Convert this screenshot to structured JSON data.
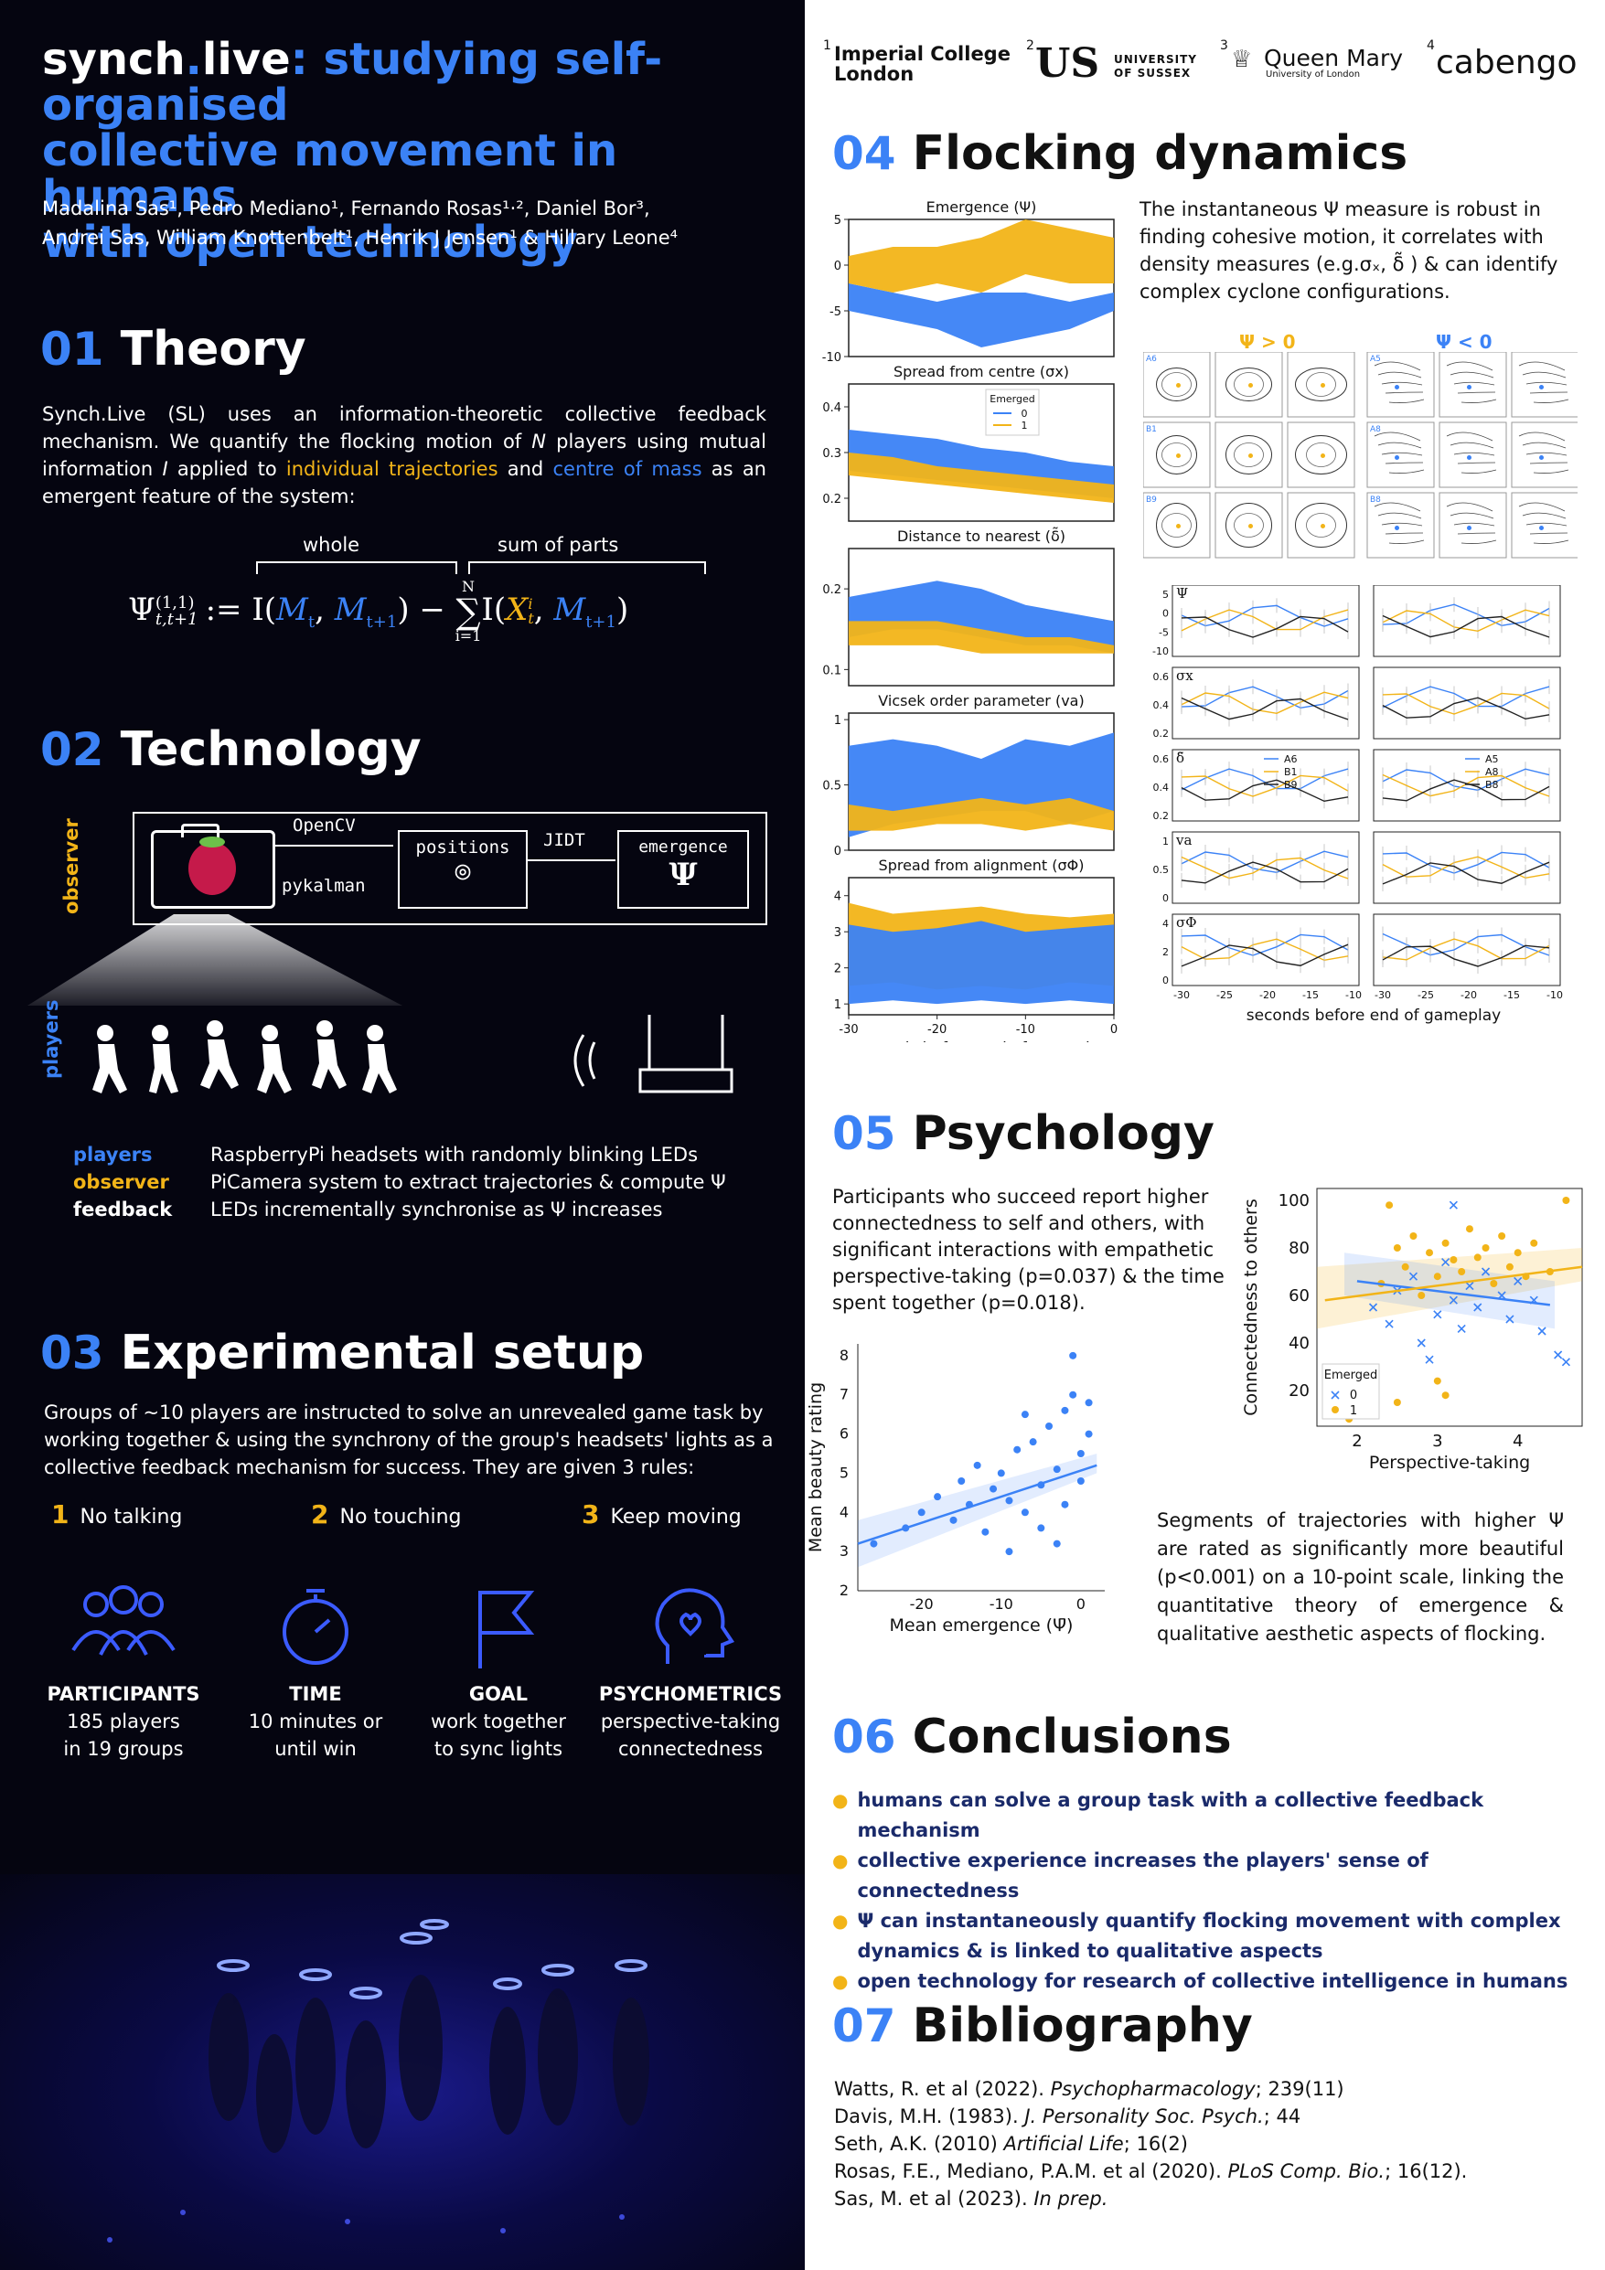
{
  "header": {
    "title_part1": "synch",
    "title_dot": ".",
    "title_part2": "live",
    "title_colon": ":",
    "title_rest1": " studying self-organised",
    "title_rest2": "collective movement in humans",
    "title_rest3": "with open technology",
    "authors_line1": "Madalina Sas¹, Pedro Mediano¹, Fernando Rosas¹·², Daniel Bor³,",
    "authors_line2": "Andrei Sas, William Knottenbelt¹, Henrik J Jensen¹ & Hillary Leone⁴"
  },
  "sections": {
    "theory": {
      "num": "01",
      "title": "Theory",
      "text_a": "Synch.Live (SL) uses an information-theoretic collective feedback mechanism. We quantify the flocking motion of ",
      "N": "N",
      "text_b": " players using mutual information ",
      "I": "I",
      "text_c": " applied to ",
      "traj": "individual trajectories",
      "text_d": " and ",
      "com": "centre of mass",
      "text_e": " as an emergent feature of the system:",
      "formula": {
        "whole": "whole",
        "sum_of_parts": "sum of parts",
        "lhs": "Ψ",
        "sup": "(1,1)",
        "sub": "t,t+1",
        "def": ":= I(",
        "Mt": "M",
        "Mt_sub": "t",
        "comma": ", ",
        "Mt1": "M",
        "Mt1_sub": "t+1",
        "close_minus": ") − ",
        "sum": "∑",
        "sum_top": "N",
        "sum_bot": "i=1",
        "I2": "I(",
        "X": "X",
        "X_sup": "i",
        "X_sub": "t",
        "comma2": ", ",
        "M2": "M",
        "M2_sub": "t+1",
        "end": ")"
      }
    },
    "technology": {
      "num": "02",
      "title": "Technology",
      "observer_label": "observer",
      "players_label": "players",
      "opencv": "OpenCV",
      "pykalman": "pykalman",
      "positions": "positions",
      "jidt": "JIDT",
      "emergence": "emergence",
      "psi": "Ψ",
      "rows": [
        {
          "key": "players",
          "desc": "RaspberryPi headsets with randomly blinking LEDs"
        },
        {
          "key": "observer",
          "desc": "PiCamera system to extract trajectories & compute Ψ"
        },
        {
          "key": "feedback",
          "desc": "LEDs incrementally synchronise as  Ψ  increases"
        }
      ]
    },
    "setup": {
      "num": "03",
      "title": "Experimental setup",
      "text": "Groups of ~10 players are instructed to solve an unrevealed game task by working together & using the synchrony of the group's headsets' lights as a collective feedback mechanism for success. They are given 3 rules:",
      "rules": [
        {
          "n": "1",
          "label": "No talking"
        },
        {
          "n": "2",
          "label": "No touching"
        },
        {
          "n": "3",
          "label": "Keep moving"
        }
      ],
      "icons": [
        {
          "label": "PARTICIPANTS",
          "l1": "185 players",
          "l2": "in 19 groups"
        },
        {
          "label": "TIME",
          "l1": "10 minutes or",
          "l2": "until win"
        },
        {
          "label": "GOAL",
          "l1": "work together",
          "l2": "to sync lights"
        },
        {
          "label": "PSYCHOMETRICS",
          "l1": "perspective-taking",
          "l2": "connectedness"
        }
      ]
    },
    "flocking": {
      "num": "04",
      "title": "Flocking dynamics",
      "text": "The instantaneous Ψ measure is robust in finding cohesive motion, it correlates with density measures (e.g.σₓ, δ̃ ) & can identify complex cyclone configurations.",
      "psi_pos": "Ψ > 0",
      "psi_neg": "Ψ < 0",
      "grid_labels": [
        "A6",
        "A5",
        "B1",
        "A8",
        "B9",
        "B8"
      ],
      "xlabel": "seconds before end of gameplay",
      "legend_title": "Emerged",
      "legend_items": [
        "0",
        "1"
      ],
      "side_legend_left": [
        "A6",
        "B1",
        "B9"
      ],
      "side_legend_right": [
        "A5",
        "A8",
        "B8"
      ]
    },
    "psychology": {
      "num": "05",
      "title": "Psychology",
      "text": "Participants who succeed report higher connectedness to self and others, with significant interactions with empathetic perspective-taking (p=0.037) & the time spent together (p=0.018).",
      "text2": "Segments of trajectories with higher Ψ are rated as significantly more beautiful (p<0.001) on a 10-point scale, linking the quantitative theory of emergence & qualitative aesthetic aspects of flocking."
    },
    "conclusions": {
      "num": "06",
      "title": "Conclusions",
      "items": [
        "humans can solve a group task with a collective feedback mechanism",
        "collective experience increases the players' sense of connectedness",
        "Ψ can instantaneously quantify flocking movement with complex dynamics & is linked to qualitative aspects",
        "open technology for research of collective intelligence in humans"
      ]
    },
    "bibliography": {
      "num": "07",
      "title": "Bibliography",
      "refs": [
        {
          "a": "Watts, R. et al (2022).  ",
          "j": "Psychopharmacology",
          "b": "; 239(11)"
        },
        {
          "a": "Davis, M.H. (1983). ",
          "j": "J. Personality Soc. Psych.",
          "b": "; 44"
        },
        {
          "a": "Seth, A.K. (2010) ",
          "j": "Artificial Life",
          "b": "; 16(2)"
        },
        {
          "a": "Rosas, F.E., Mediano, P.A.M. et al (2020). ",
          "j": "PLoS Comp. Bio.",
          "b": "; 16(12)."
        },
        {
          "a": "Sas, M. et al (2023). ",
          "j": "In prep.",
          "b": ""
        }
      ]
    }
  },
  "logos": {
    "imperial": "Imperial College",
    "imperial2": "London",
    "sussex1": "UNIVERSITY",
    "sussex2": "OF SUSSEX",
    "qm": "Queen Mary",
    "qm2": "University of London",
    "cabengo": "cabengo",
    "n1": "1",
    "n2": "2",
    "n3": "3",
    "n4": "4",
    "us": "US"
  },
  "chart_data": [
    {
      "type": "area",
      "title": "Emergence (Ψ)",
      "xlabel": "seconds before end of gameplay",
      "xlim": [
        -30,
        0
      ],
      "ylim": [
        -10,
        5
      ],
      "yticks": [
        5,
        0,
        -5,
        -10
      ],
      "x": [
        -30,
        -25,
        -20,
        -15,
        -10,
        -5,
        0
      ],
      "series": [
        {
          "name": "0",
          "color": "#3b82f6",
          "upper": [
            -2,
            -3,
            -4,
            -3,
            -3,
            -4,
            -3
          ],
          "lower": [
            -5,
            -6,
            -7,
            -9,
            -8,
            -7,
            -5
          ]
        },
        {
          "name": "1",
          "color": "#f2b418",
          "upper": [
            1,
            2,
            2,
            3,
            5,
            4,
            3
          ],
          "lower": [
            -2,
            -3,
            -2,
            -3,
            -1,
            -2,
            -2
          ]
        }
      ]
    },
    {
      "type": "area",
      "title": "Spread from centre (σx)",
      "xlim": [
        -30,
        0
      ],
      "ylim": [
        0.15,
        0.45
      ],
      "yticks": [
        0.4,
        0.3,
        0.2
      ],
      "legend_title": "Emerged",
      "legend": [
        "0",
        "1"
      ],
      "x": [
        -30,
        -25,
        -20,
        -15,
        -10,
        -5,
        0
      ],
      "series": [
        {
          "name": "0",
          "color": "#3b82f6",
          "upper": [
            0.35,
            0.34,
            0.33,
            0.31,
            0.3,
            0.28,
            0.27
          ],
          "lower": [
            0.26,
            0.25,
            0.24,
            0.23,
            0.22,
            0.21,
            0.2
          ]
        },
        {
          "name": "1",
          "color": "#f2b418",
          "upper": [
            0.3,
            0.29,
            0.27,
            0.26,
            0.25,
            0.24,
            0.23
          ],
          "lower": [
            0.25,
            0.24,
            0.23,
            0.22,
            0.21,
            0.2,
            0.19
          ]
        }
      ]
    },
    {
      "type": "area",
      "title": "Distance to nearest (δ̃)",
      "xlim": [
        -30,
        0
      ],
      "ylim": [
        0.08,
        0.25
      ],
      "yticks": [
        0.2,
        0.1
      ],
      "x": [
        -30,
        -25,
        -20,
        -15,
        -10,
        -5,
        0
      ],
      "series": [
        {
          "name": "0",
          "color": "#3b82f6",
          "upper": [
            0.19,
            0.2,
            0.21,
            0.2,
            0.18,
            0.17,
            0.16
          ],
          "lower": [
            0.14,
            0.15,
            0.15,
            0.14,
            0.13,
            0.13,
            0.12
          ]
        },
        {
          "name": "1",
          "color": "#f2b418",
          "upper": [
            0.16,
            0.16,
            0.16,
            0.15,
            0.14,
            0.14,
            0.13
          ],
          "lower": [
            0.13,
            0.13,
            0.13,
            0.12,
            0.12,
            0.12,
            0.12
          ]
        }
      ]
    },
    {
      "type": "area",
      "title": "Vicsek order parameter (va)",
      "xlim": [
        -30,
        0
      ],
      "ylim": [
        0,
        1.05
      ],
      "yticks": [
        1.0,
        0.5,
        0.0
      ],
      "x": [
        -30,
        -25,
        -20,
        -15,
        -10,
        -5,
        0
      ],
      "series": [
        {
          "name": "0",
          "color": "#3b82f6",
          "upper": [
            0.8,
            0.85,
            0.8,
            0.7,
            0.85,
            0.8,
            0.9
          ],
          "lower": [
            0.1,
            0.2,
            0.25,
            0.3,
            0.3,
            0.2,
            0.3
          ]
        },
        {
          "name": "1",
          "color": "#f2b418",
          "upper": [
            0.35,
            0.3,
            0.35,
            0.4,
            0.35,
            0.4,
            0.3
          ],
          "lower": [
            0.15,
            0.15,
            0.2,
            0.2,
            0.15,
            0.2,
            0.15
          ]
        }
      ]
    },
    {
      "type": "area",
      "title": "Spread from alignment (σΦ)",
      "xlim": [
        -30,
        0
      ],
      "ylim": [
        0.7,
        4.5
      ],
      "yticks": [
        4,
        3,
        2,
        1
      ],
      "xticks": [
        -30,
        -20,
        -10,
        0
      ],
      "x": [
        -30,
        -25,
        -20,
        -15,
        -10,
        -5,
        0
      ],
      "series": [
        {
          "name": "1",
          "color": "#f2b418",
          "upper": [
            3.8,
            3.5,
            3.6,
            3.7,
            3.5,
            3.4,
            3.5
          ],
          "lower": [
            1.5,
            1.6,
            1.4,
            1.5,
            1.4,
            1.6,
            1.5
          ]
        },
        {
          "name": "0",
          "color": "#3b82f6",
          "upper": [
            3.2,
            3.0,
            3.1,
            3.3,
            3.0,
            3.1,
            3.2
          ],
          "lower": [
            1.0,
            1.1,
            1.0,
            1.1,
            1.0,
            1.1,
            1.0
          ]
        }
      ]
    },
    {
      "type": "line",
      "title": "",
      "xlabel": "seconds before end of gameplay",
      "xticks_left": [
        -30,
        -25,
        -20,
        -15,
        -10
      ],
      "xticks_right": [
        -30,
        -25,
        -20,
        -15,
        -10
      ],
      "panels": [
        {
          "metric": "Ψ",
          "yticks": [
            5,
            0,
            -5,
            -10
          ]
        },
        {
          "metric": "σx",
          "yticks": [
            0.6,
            0.4,
            0.2
          ]
        },
        {
          "metric": "δ̃",
          "yticks": [
            0.6,
            0.4,
            0.2
          ]
        },
        {
          "metric": "va",
          "yticks": [
            1.0,
            0.5,
            0.0
          ]
        },
        {
          "metric": "σΦ",
          "yticks": [
            4,
            2,
            0
          ]
        }
      ],
      "legend_left": [
        "A6",
        "B1",
        "B9"
      ],
      "legend_right": [
        "A5",
        "A8",
        "B8"
      ]
    },
    {
      "type": "scatter",
      "title": "",
      "xlabel": "Perspective-taking",
      "ylabel": "Connectedness to others",
      "xlim": [
        1.5,
        4.8
      ],
      "ylim": [
        5,
        105
      ],
      "xticks": [
        2,
        3,
        4
      ],
      "yticks": [
        100,
        80,
        60,
        40,
        20
      ],
      "legend_title": "Emerged",
      "legend": [
        "0",
        "1"
      ],
      "series": [
        {
          "name": "0",
          "marker": "x",
          "color": "#3b82f6",
          "points": [
            [
              2.2,
              55
            ],
            [
              2.4,
              48
            ],
            [
              2.5,
              62
            ],
            [
              2.7,
              68
            ],
            [
              2.8,
              40
            ],
            [
              3.0,
              52
            ],
            [
              3.1,
              74
            ],
            [
              3.2,
              58
            ],
            [
              3.3,
              46
            ],
            [
              3.4,
              64
            ],
            [
              3.5,
              55
            ],
            [
              3.6,
              70
            ],
            [
              3.8,
              60
            ],
            [
              3.9,
              50
            ],
            [
              4.0,
              66
            ],
            [
              4.2,
              58
            ],
            [
              4.3,
              45
            ],
            [
              4.5,
              35
            ],
            [
              3.2,
              98
            ],
            [
              2.9,
              33
            ],
            [
              4.6,
              32
            ]
          ]
        },
        {
          "name": "1",
          "marker": "o",
          "color": "#f2b418",
          "points": [
            [
              1.9,
              8
            ],
            [
              2.3,
              65
            ],
            [
              2.5,
              80
            ],
            [
              2.6,
              72
            ],
            [
              2.7,
              85
            ],
            [
              2.8,
              60
            ],
            [
              2.9,
              78
            ],
            [
              3.0,
              68
            ],
            [
              3.1,
              82
            ],
            [
              3.2,
              75
            ],
            [
              3.3,
              70
            ],
            [
              3.4,
              88
            ],
            [
              3.5,
              76
            ],
            [
              3.6,
              80
            ],
            [
              3.7,
              65
            ],
            [
              3.8,
              85
            ],
            [
              3.9,
              72
            ],
            [
              4.0,
              78
            ],
            [
              4.1,
              68
            ],
            [
              4.2,
              82
            ],
            [
              4.4,
              70
            ],
            [
              4.6,
              100
            ],
            [
              3.0,
              24
            ],
            [
              3.1,
              18
            ],
            [
              2.4,
              98
            ],
            [
              2.5,
              15
            ]
          ]
        }
      ]
    },
    {
      "type": "scatter",
      "title": "",
      "xlabel": "Mean emergence (Ψ̄)",
      "ylabel": "Mean beauty rating",
      "xlim": [
        -28,
        3
      ],
      "ylim": [
        2,
        8.3
      ],
      "xticks": [
        -20,
        -10,
        0
      ],
      "yticks": [
        8,
        7,
        6,
        5,
        4,
        3,
        2
      ],
      "series": [
        {
          "name": "",
          "color": "#3b82f6",
          "points": [
            [
              -26,
              3.2
            ],
            [
              -22,
              3.6
            ],
            [
              -20,
              4.0
            ],
            [
              -18,
              4.4
            ],
            [
              -16,
              3.8
            ],
            [
              -15,
              4.8
            ],
            [
              -14,
              4.2
            ],
            [
              -13,
              5.2
            ],
            [
              -12,
              3.5
            ],
            [
              -11,
              4.6
            ],
            [
              -10,
              5.0
            ],
            [
              -9,
              4.3
            ],
            [
              -8,
              5.6
            ],
            [
              -7,
              4.0
            ],
            [
              -6,
              5.8
            ],
            [
              -5,
              4.7
            ],
            [
              -4,
              6.2
            ],
            [
              -3,
              5.1
            ],
            [
              -2,
              6.6
            ],
            [
              -1,
              7.0
            ],
            [
              0,
              5.5
            ],
            [
              1,
              6.8
            ],
            [
              -1,
              8.0
            ],
            [
              -3,
              3.2
            ],
            [
              -5,
              3.6
            ],
            [
              -7,
              6.5
            ],
            [
              -9,
              3.0
            ],
            [
              -2,
              4.2
            ],
            [
              0,
              4.8
            ],
            [
              1,
              6.0
            ]
          ]
        }
      ],
      "trend": {
        "x": [
          -28,
          2
        ],
        "y": [
          3.2,
          5.2
        ]
      }
    }
  ]
}
